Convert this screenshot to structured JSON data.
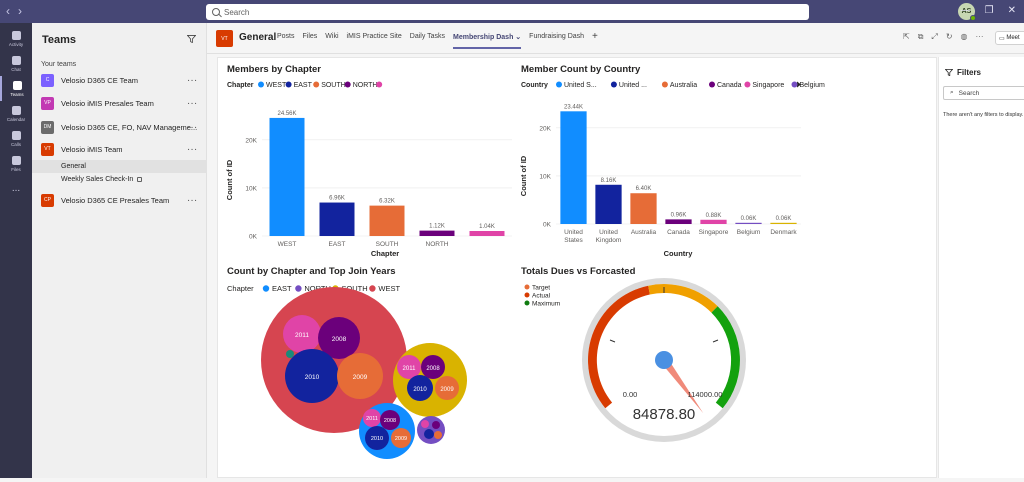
{
  "topbar": {
    "search_placeholder": "Search",
    "avatar_initials": "AS"
  },
  "rail": [
    {
      "label": "Activity"
    },
    {
      "label": "Chat"
    },
    {
      "label": "Teams"
    },
    {
      "label": "Calendar"
    },
    {
      "label": "Calls"
    },
    {
      "label": "Files"
    },
    {
      "label": "..."
    }
  ],
  "teams_pane": {
    "title": "Teams",
    "section": "Your teams",
    "teams": [
      {
        "initials": "C",
        "color": "#7b61ff",
        "name": "Velosio D365 CE Team"
      },
      {
        "initials": "VP",
        "color": "#c239b3",
        "name": "Velosio iMIS Presales Team"
      },
      {
        "initials": "DM",
        "color": "#6b6b6b",
        "name": "Velosio D365 CE, FO, NAV Manageme..."
      },
      {
        "initials": "VT",
        "color": "#d83b01",
        "name": "Velosio iMIS Team"
      },
      {
        "initials": "CP",
        "color": "#d83b01",
        "name": "Velosio D365 CE Presales Team"
      }
    ],
    "channels": [
      "General",
      "Weekly Sales Check-In"
    ]
  },
  "channel_header": {
    "initials": "VT",
    "name": "General",
    "tabs": [
      "Posts",
      "Files",
      "Wiki",
      "iMIS Practice Site",
      "Daily Tasks",
      "Membership Dash",
      "Fundraising Dash",
      "+"
    ],
    "active_tab": "Membership Dash",
    "meet_label": "Meet"
  },
  "filters": {
    "title": "Filters",
    "search_placeholder": "Search",
    "message": "There aren't any filters to display."
  },
  "chart_data": [
    {
      "type": "bar",
      "title": "Members by Chapter",
      "legend_title": "Chapter",
      "legend": [
        "WEST",
        "EAST",
        "SOUTH",
        "NORTH",
        ""
      ],
      "categories": [
        "WEST",
        "EAST",
        "SOUTH",
        "NORTH",
        ""
      ],
      "values": [
        24560,
        6960,
        6320,
        1120,
        1040
      ],
      "data_labels": [
        "24.56K",
        "6.96K",
        "6.32K",
        "1.12K",
        "1.04K"
      ],
      "colors": [
        "#118dff",
        "#12239e",
        "#e66c37",
        "#6b007b",
        "#e044a7"
      ],
      "xlabel": "Chapter",
      "ylabel": "Count of ID",
      "yticks": [
        "0K",
        "10K",
        "20K"
      ],
      "ylim": [
        0,
        26000
      ]
    },
    {
      "type": "bar",
      "title": "Member Count by Country",
      "legend_title": "Country",
      "legend": [
        "United S...",
        "United ...",
        "Australia",
        "Canada",
        "Singapore",
        "Belgium"
      ],
      "categories": [
        "United States",
        "United Kingdom",
        "Australia",
        "Canada",
        "Singapore",
        "Belgium",
        "Denmark"
      ],
      "values": [
        23440,
        8160,
        6400,
        960,
        880,
        60,
        60
      ],
      "data_labels": [
        "23.44K",
        "8.16K",
        "6.40K",
        "0.96K",
        "0.88K",
        "0.06K",
        "0.06K"
      ],
      "colors": [
        "#118dff",
        "#12239e",
        "#e66c37",
        "#6b007b",
        "#e044a7",
        "#744ec2",
        "#d9b300"
      ],
      "xlabel": "Country",
      "ylabel": "Count of ID",
      "yticks": [
        "0K",
        "10K",
        "20K"
      ],
      "ylim": [
        0,
        26000
      ]
    },
    {
      "type": "bubble",
      "title": "Count by Chapter and Top Join Years",
      "legend_title": "Chapter",
      "legend": [
        {
          "name": "EAST",
          "color": "#118dff"
        },
        {
          "name": "NORTH",
          "color": "#744ec2"
        },
        {
          "name": "SOUTH",
          "color": "#d9b300"
        },
        {
          "name": "WEST",
          "color": "#d64550"
        }
      ],
      "bubble_labels": [
        "2011",
        "2008",
        "2010",
        "2009",
        "2011",
        "2008",
        "2010",
        "2009",
        "2011",
        "2008",
        "2010",
        "2009"
      ]
    },
    {
      "type": "gauge",
      "title": "Totals Dues vs Forcasted",
      "legend": [
        {
          "name": "Target",
          "color": "#e66c37"
        },
        {
          "name": "Actual",
          "color": "#d83b01"
        },
        {
          "name": "Maximum",
          "color": "#107c10"
        }
      ],
      "min_label": "0.00",
      "max_label": "114000.00",
      "value_label": "84878.80",
      "value": 84878.8,
      "max": 114000
    }
  ]
}
